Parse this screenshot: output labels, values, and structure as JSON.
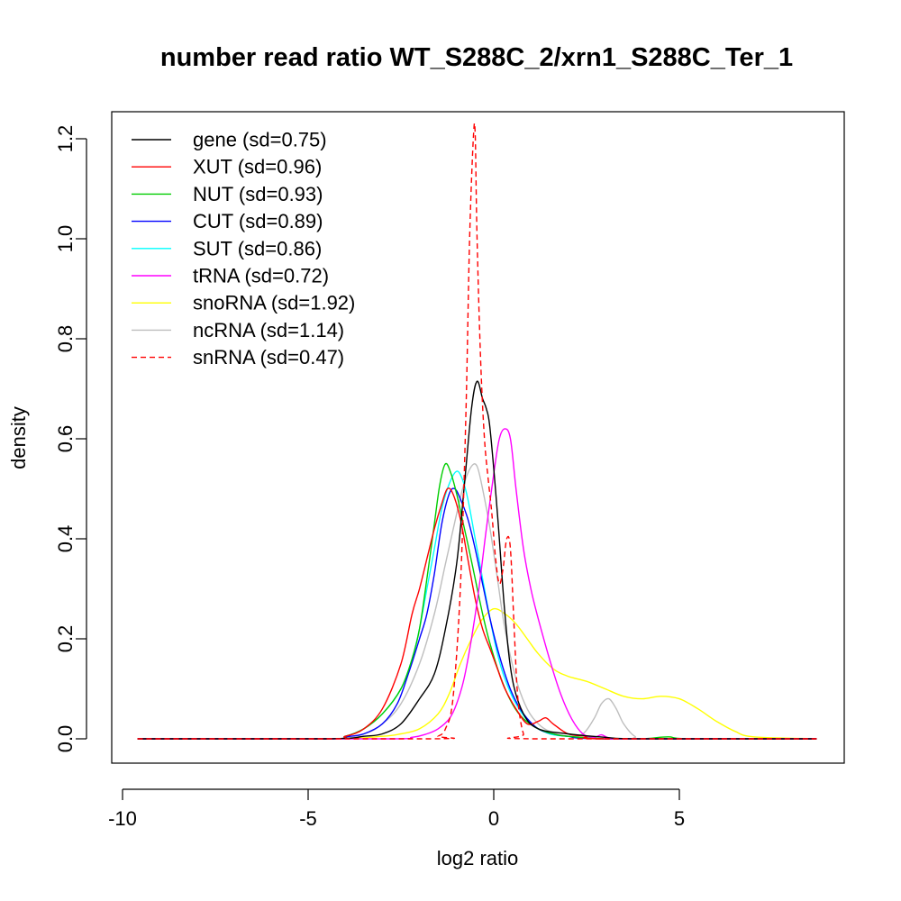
{
  "chart_data": {
    "type": "line",
    "title": "number read ratio WT_S288C_2/xrn1_S288C_Ter_1",
    "xlabel": "log2 ratio",
    "ylabel": "density",
    "xlim": [
      -10,
      10
    ],
    "ylim": [
      -0.05,
      1.25
    ],
    "xticks": [
      -10,
      -5,
      0,
      5
    ],
    "yticks": [
      0.0,
      0.2,
      0.4,
      0.6,
      0.8,
      1.0,
      1.2
    ],
    "xtick_labels": [
      "-10",
      "-5",
      "0",
      "5"
    ],
    "ytick_labels": [
      "0.0",
      "0.2",
      "0.4",
      "0.6",
      "0.8",
      "1.0",
      "1.2"
    ],
    "grid": false,
    "legend_position": "top-left",
    "series": [
      {
        "name": "gene (sd=0.75)",
        "color": "#000000",
        "dash": false,
        "x": [
          -9.6,
          -4.5,
          -3.5,
          -3.0,
          -2.5,
          -2.0,
          -1.6,
          -1.3,
          -1.0,
          -0.8,
          -0.6,
          -0.45,
          -0.3,
          -0.2,
          -0.1,
          0.1,
          0.3,
          0.5,
          0.8,
          1.2,
          2.0,
          3.0,
          4.0,
          8.7
        ],
        "y": [
          0.0,
          0.0,
          0.005,
          0.01,
          0.03,
          0.08,
          0.13,
          0.22,
          0.35,
          0.5,
          0.66,
          0.715,
          0.68,
          0.66,
          0.62,
          0.45,
          0.25,
          0.12,
          0.05,
          0.02,
          0.01,
          0.003,
          0.0,
          0.0
        ]
      },
      {
        "name": "XUT (sd=0.96)",
        "color": "#ff0000",
        "dash": false,
        "x": [
          -9.6,
          -4.5,
          -4.0,
          -3.5,
          -3.0,
          -2.5,
          -2.2,
          -2.0,
          -1.8,
          -1.6,
          -1.4,
          -1.25,
          -1.1,
          -0.9,
          -0.7,
          -0.5,
          -0.3,
          -0.1,
          0.1,
          0.3,
          0.6,
          0.9,
          1.2,
          1.4,
          1.6,
          2.0,
          2.5,
          3.0,
          8.7
        ],
        "y": [
          0.0,
          0.0,
          0.005,
          0.02,
          0.06,
          0.15,
          0.25,
          0.3,
          0.36,
          0.42,
          0.47,
          0.5,
          0.49,
          0.44,
          0.36,
          0.28,
          0.22,
          0.18,
          0.14,
          0.1,
          0.06,
          0.03,
          0.035,
          0.042,
          0.03,
          0.01,
          0.005,
          0.0,
          0.0
        ]
      },
      {
        "name": "NUT (sd=0.93)",
        "color": "#00cd00",
        "dash": false,
        "x": [
          -9.6,
          -4.5,
          -4.0,
          -3.5,
          -3.0,
          -2.5,
          -2.2,
          -2.0,
          -1.8,
          -1.6,
          -1.45,
          -1.3,
          -1.15,
          -1.0,
          -0.85,
          -0.7,
          -0.5,
          -0.3,
          -0.1,
          0.2,
          0.5,
          0.8,
          1.2,
          1.6,
          2.0,
          3.0,
          4.0,
          4.7,
          5.3,
          8.7
        ],
        "y": [
          0.0,
          0.0,
          0.005,
          0.02,
          0.05,
          0.1,
          0.16,
          0.22,
          0.32,
          0.43,
          0.51,
          0.55,
          0.53,
          0.49,
          0.44,
          0.39,
          0.32,
          0.25,
          0.19,
          0.12,
          0.07,
          0.04,
          0.02,
          0.01,
          0.005,
          0.0,
          0.0,
          0.004,
          0.0,
          0.0
        ]
      },
      {
        "name": "CUT (sd=0.89)",
        "color": "#0000ff",
        "dash": false,
        "x": [
          -9.6,
          -4.5,
          -4.0,
          -3.5,
          -3.0,
          -2.6,
          -2.3,
          -2.0,
          -1.8,
          -1.6,
          -1.4,
          -1.2,
          -1.05,
          -0.9,
          -0.7,
          -0.5,
          -0.3,
          -0.1,
          0.1,
          0.3,
          0.5,
          0.8,
          1.2,
          1.6,
          2.0,
          3.0,
          8.7
        ],
        "y": [
          0.0,
          0.0,
          0.004,
          0.01,
          0.03,
          0.07,
          0.13,
          0.2,
          0.25,
          0.33,
          0.43,
          0.49,
          0.5,
          0.48,
          0.44,
          0.38,
          0.31,
          0.24,
          0.18,
          0.13,
          0.09,
          0.05,
          0.02,
          0.01,
          0.005,
          0.0,
          0.0
        ]
      },
      {
        "name": "SUT (sd=0.86)",
        "color": "#00ffff",
        "dash": false,
        "x": [
          -9.6,
          -4.5,
          -4.0,
          -3.5,
          -3.0,
          -2.5,
          -2.2,
          -2.0,
          -1.8,
          -1.6,
          -1.4,
          -1.2,
          -1.0,
          -0.85,
          -0.7,
          -0.5,
          -0.3,
          -0.1,
          0.1,
          0.3,
          0.6,
          1.0,
          1.5,
          2.0,
          3.0,
          8.7
        ],
        "y": [
          0.0,
          0.0,
          0.005,
          0.02,
          0.05,
          0.1,
          0.16,
          0.22,
          0.3,
          0.38,
          0.46,
          0.51,
          0.535,
          0.52,
          0.48,
          0.4,
          0.32,
          0.24,
          0.17,
          0.12,
          0.07,
          0.03,
          0.01,
          0.005,
          0.0,
          0.0
        ]
      },
      {
        "name": "tRNA (sd=0.72)",
        "color": "#ff00ff",
        "dash": false,
        "x": [
          -9.6,
          -3.0,
          -2.2,
          -1.8,
          -1.5,
          -1.2,
          -1.0,
          -0.8,
          -0.6,
          -0.4,
          -0.2,
          0.0,
          0.15,
          0.3,
          0.45,
          0.6,
          0.8,
          1.0,
          1.2,
          1.5,
          1.8,
          2.1,
          2.4,
          2.7,
          2.9,
          3.1,
          3.5,
          8.7
        ],
        "y": [
          0.0,
          0.0,
          0.003,
          0.01,
          0.02,
          0.04,
          0.07,
          0.12,
          0.2,
          0.3,
          0.42,
          0.53,
          0.6,
          0.62,
          0.6,
          0.5,
          0.38,
          0.3,
          0.24,
          0.16,
          0.09,
          0.04,
          0.01,
          0.003,
          0.008,
          0.002,
          0.0,
          0.0
        ]
      },
      {
        "name": "snoRNA (sd=1.92)",
        "color": "#ffff00",
        "dash": false,
        "x": [
          -9.6,
          -4.5,
          -3.0,
          -2.5,
          -2.0,
          -1.5,
          -1.2,
          -0.9,
          -0.6,
          -0.3,
          0.0,
          0.3,
          0.6,
          0.9,
          1.2,
          1.6,
          2.0,
          2.5,
          3.0,
          3.5,
          4.0,
          4.5,
          5.0,
          5.5,
          6.0,
          6.5,
          7.0,
          8.7
        ],
        "y": [
          0.0,
          0.0,
          0.005,
          0.01,
          0.02,
          0.05,
          0.09,
          0.15,
          0.2,
          0.24,
          0.26,
          0.25,
          0.23,
          0.2,
          0.17,
          0.14,
          0.125,
          0.115,
          0.1,
          0.085,
          0.08,
          0.085,
          0.08,
          0.06,
          0.035,
          0.015,
          0.004,
          0.0
        ]
      },
      {
        "name": "ncRNA (sd=1.14)",
        "color": "#bebebe",
        "dash": false,
        "x": [
          -9.6,
          -4.5,
          -3.5,
          -3.0,
          -2.5,
          -2.0,
          -1.6,
          -1.3,
          -1.0,
          -0.8,
          -0.6,
          -0.45,
          -0.3,
          -0.1,
          0.1,
          0.3,
          0.6,
          0.9,
          1.2,
          1.5,
          2.0,
          2.4,
          2.7,
          2.9,
          3.1,
          3.3,
          3.5,
          3.8,
          4.2,
          8.7
        ],
        "y": [
          0.0,
          0.0,
          0.01,
          0.03,
          0.07,
          0.15,
          0.25,
          0.35,
          0.45,
          0.51,
          0.545,
          0.545,
          0.5,
          0.42,
          0.32,
          0.22,
          0.12,
          0.06,
          0.03,
          0.015,
          0.005,
          0.01,
          0.04,
          0.07,
          0.08,
          0.06,
          0.03,
          0.005,
          0.0,
          0.0
        ]
      },
      {
        "name": "snRNA (sd=0.47)",
        "color": "#ff0000",
        "dash": true,
        "x": [
          -9.6,
          -1.7,
          -1.5,
          -1.3,
          -1.1,
          -0.9,
          -0.75,
          -0.65,
          -0.55,
          -0.5,
          -0.45,
          -0.35,
          -0.25,
          -0.15,
          -0.05,
          0.05,
          0.15,
          0.25,
          0.35,
          0.45,
          0.55,
          0.65,
          0.8,
          1.0,
          8.7
        ],
        "y": [
          0.0,
          0.0,
          0.005,
          0.02,
          0.08,
          0.3,
          0.65,
          1.0,
          1.2,
          1.21,
          1.0,
          0.75,
          0.6,
          0.52,
          0.45,
          0.36,
          0.31,
          0.34,
          0.4,
          0.38,
          0.22,
          0.08,
          0.01,
          0.0,
          0.0
        ]
      }
    ]
  }
}
